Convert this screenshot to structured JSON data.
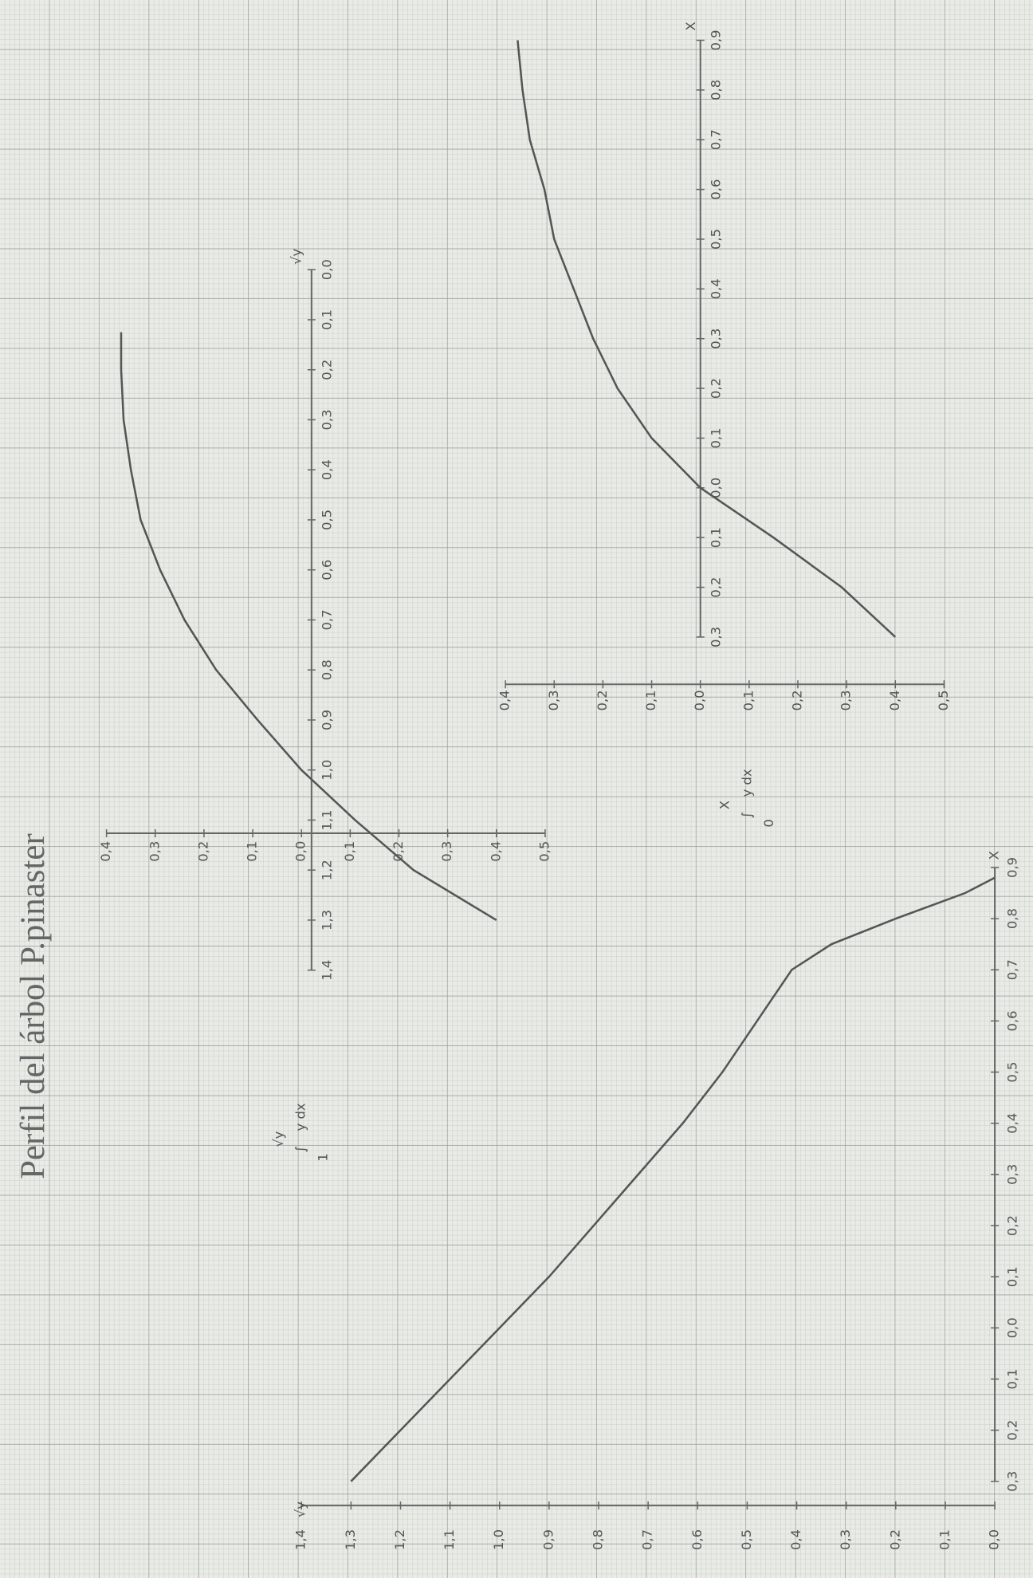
{
  "title": "Perfil del árbol P.pinaster",
  "chart_data": [
    {
      "type": "line",
      "xlabel": "X",
      "ylabel": "√y",
      "x": [
        -0.3,
        -0.2,
        -0.1,
        0,
        0.1,
        0.2,
        0.3,
        0.4,
        0.5,
        0.6,
        0.7,
        0.75,
        0.8,
        0.85,
        0.88
      ],
      "series": [
        {
          "color": "#555555",
          "values": [
            1.3,
            1.2,
            1.1,
            1.0,
            0.9,
            0.81,
            0.72,
            0.63,
            0.55,
            0.48,
            0.41,
            0.33,
            0.2,
            0.06,
            0
          ]
        }
      ],
      "xlim": [
        -0.3,
        0.9
      ],
      "ylim": [
        0,
        1.4
      ],
      "xticks": [
        {
          "value": -0.3,
          "label": "0,3"
        },
        {
          "value": -0.2,
          "label": "0,2"
        },
        {
          "value": -0.1,
          "label": "0,1"
        },
        {
          "value": 0,
          "label": "0,0"
        },
        {
          "value": 0.1,
          "label": "0,1"
        },
        {
          "value": 0.2,
          "label": "0,2"
        },
        {
          "value": 0.3,
          "label": "0,3"
        },
        {
          "value": 0.4,
          "label": "0,4"
        },
        {
          "value": 0.5,
          "label": "0,5"
        },
        {
          "value": 0.6,
          "label": "0,6"
        },
        {
          "value": 0.7,
          "label": "0,7"
        },
        {
          "value": 0.8,
          "label": "0,8"
        },
        {
          "value": 0.9,
          "label": "0,9"
        }
      ],
      "yticks": [
        {
          "value": 0,
          "label": "0,0"
        },
        {
          "value": 0.1,
          "label": "0,1"
        },
        {
          "value": 0.2,
          "label": "0,2"
        },
        {
          "value": 0.3,
          "label": "0,3"
        },
        {
          "value": 0.4,
          "label": "0,4"
        },
        {
          "value": 0.5,
          "label": "0,5"
        },
        {
          "value": 0.6,
          "label": "0,6"
        },
        {
          "value": 0.7,
          "label": "0,7"
        },
        {
          "value": 0.8,
          "label": "0,8"
        },
        {
          "value": 0.9,
          "label": "0,9"
        },
        {
          "value": 1.0,
          "label": "1,0"
        },
        {
          "value": 1.1,
          "label": "1,1"
        },
        {
          "value": 1.2,
          "label": "1,2"
        },
        {
          "value": 1.3,
          "label": "1,3"
        },
        {
          "value": 1.4,
          "label": "1,4"
        }
      ]
    },
    {
      "type": "line",
      "xlabel": "√y",
      "ylabel": {
        "symbol": "∫",
        "upper": "√y",
        "lower": "1",
        "integrand": "y dx"
      },
      "x": [
        0.125,
        0.15,
        0.2,
        0.3,
        0.4,
        0.5,
        0.6,
        0.7,
        0.8,
        0.9,
        1.0,
        1.1,
        1.2,
        1.3
      ],
      "series": [
        {
          "color": "#555555",
          "values": [
            -0.37,
            -0.37,
            -0.37,
            -0.365,
            -0.35,
            -0.33,
            -0.29,
            -0.24,
            -0.175,
            -0.09,
            0,
            0.11,
            0.23,
            0.4
          ]
        }
      ],
      "xlim": [
        0,
        1.4
      ],
      "ylim": [
        -0.4,
        0.5
      ],
      "xticks": [
        {
          "value": 0,
          "label": "0,0"
        },
        {
          "value": 0.1,
          "label": "0,1"
        },
        {
          "value": 0.2,
          "label": "0,2"
        },
        {
          "value": 0.3,
          "label": "0,3"
        },
        {
          "value": 0.4,
          "label": "0,4"
        },
        {
          "value": 0.5,
          "label": "0,5"
        },
        {
          "value": 0.6,
          "label": "0,6"
        },
        {
          "value": 0.7,
          "label": "0,7"
        },
        {
          "value": 0.8,
          "label": "0,8"
        },
        {
          "value": 0.9,
          "label": "0,9"
        },
        {
          "value": 1.0,
          "label": "1,0"
        },
        {
          "value": 1.1,
          "label": "1,1"
        },
        {
          "value": 1.2,
          "label": "1,2"
        },
        {
          "value": 1.3,
          "label": "1,3"
        },
        {
          "value": 1.4,
          "label": "1,4"
        }
      ],
      "yticks": [
        {
          "value": -0.4,
          "label": "0,4"
        },
        {
          "value": -0.3,
          "label": "0,3"
        },
        {
          "value": -0.2,
          "label": "0,2"
        },
        {
          "value": -0.1,
          "label": "0,1"
        },
        {
          "value": 0,
          "label": "0,0"
        },
        {
          "value": 0.1,
          "label": "0,1"
        },
        {
          "value": 0.2,
          "label": "0,2"
        },
        {
          "value": 0.3,
          "label": "0,3"
        },
        {
          "value": 0.4,
          "label": "0,4"
        },
        {
          "value": 0.5,
          "label": "0,5"
        }
      ]
    },
    {
      "type": "line",
      "xlabel": "X",
      "ylabel": {
        "symbol": "∫",
        "upper": "X",
        "lower": "0",
        "integrand": "y dx"
      },
      "x": [
        -0.3,
        -0.2,
        -0.1,
        0,
        0.1,
        0.2,
        0.3,
        0.4,
        0.5,
        0.6,
        0.7,
        0.8,
        0.9
      ],
      "series": [
        {
          "color": "#555555",
          "values": [
            0.4,
            0.29,
            0.15,
            0,
            -0.1,
            -0.17,
            -0.22,
            -0.26,
            -0.3,
            -0.32,
            -0.35,
            -0.365,
            -0.375
          ]
        }
      ],
      "xlim": [
        -0.3,
        0.9
      ],
      "ylim": [
        -0.4,
        0.5
      ],
      "xticks": [
        {
          "value": -0.3,
          "label": "0,3"
        },
        {
          "value": -0.2,
          "label": "0,2"
        },
        {
          "value": -0.1,
          "label": "0,1"
        },
        {
          "value": 0,
          "label": "0,0"
        },
        {
          "value": 0.1,
          "label": "0,1"
        },
        {
          "value": 0.2,
          "label": "0,2"
        },
        {
          "value": 0.3,
          "label": "0,3"
        },
        {
          "value": 0.4,
          "label": "0,4"
        },
        {
          "value": 0.5,
          "label": "0,5"
        },
        {
          "value": 0.6,
          "label": "0,6"
        },
        {
          "value": 0.7,
          "label": "0,7"
        },
        {
          "value": 0.8,
          "label": "0,8"
        },
        {
          "value": 0.9,
          "label": "0,9"
        }
      ],
      "yticks": [
        {
          "value": -0.4,
          "label": "0,4"
        },
        {
          "value": -0.3,
          "label": "0,3"
        },
        {
          "value": -0.2,
          "label": "0,2"
        },
        {
          "value": -0.1,
          "label": "0,1"
        },
        {
          "value": 0,
          "label": "0,0"
        },
        {
          "value": 0.1,
          "label": "0,1"
        },
        {
          "value": 0.2,
          "label": "0,2"
        },
        {
          "value": 0.3,
          "label": "0,3"
        },
        {
          "value": 0.4,
          "label": "0,4"
        },
        {
          "value": 0.5,
          "label": "0,5"
        }
      ]
    }
  ]
}
